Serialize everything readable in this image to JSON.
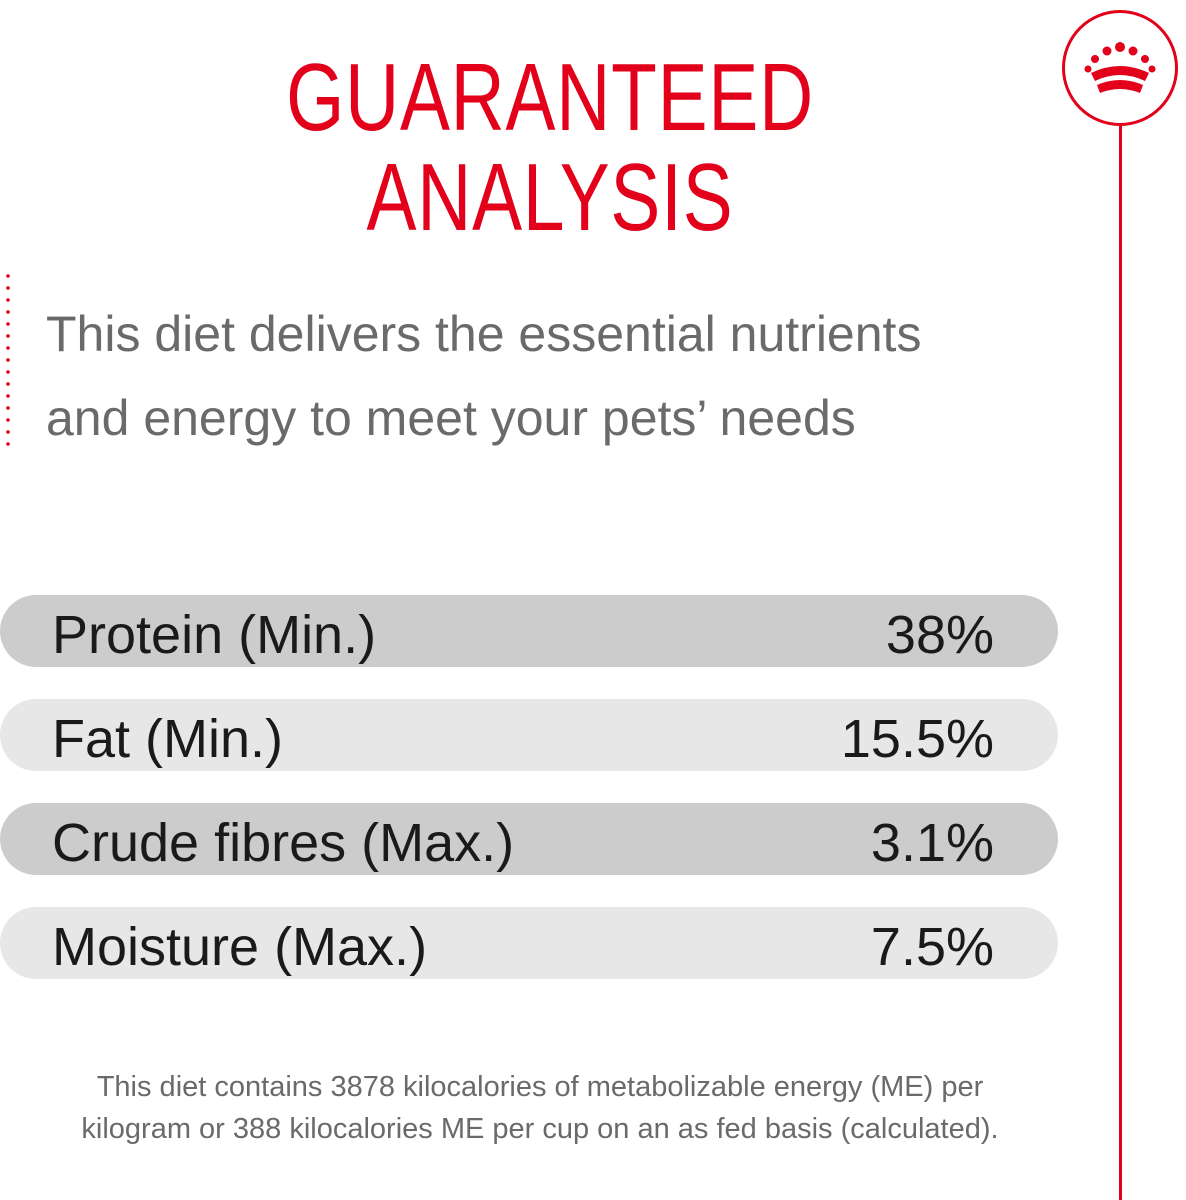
{
  "title": "GUARANTEED ANALYSIS",
  "brand_logo": {
    "icon": "royal-crown-icon",
    "color": "#e2001a"
  },
  "intro": {
    "line1": "This diet delivers the essential nutrients",
    "line2": "and energy to meet your pets’ needs"
  },
  "analysis": [
    {
      "label": "Protein (Min.)",
      "value": "38%"
    },
    {
      "label": "Fat (Min.)",
      "value": "15.5%"
    },
    {
      "label": "Crude fibres (Max.)",
      "value": "3.1%"
    },
    {
      "label": "Moisture (Max.)",
      "value": "7.5%"
    }
  ],
  "footnote": {
    "line1": "This diet contains 3878 kilocalories of metabolizable energy (ME) per",
    "line2": "kilogram or 388 kilocalories ME per cup on an as fed basis (calculated)."
  },
  "colors": {
    "accent": "#e2001a",
    "row_dark": "#cccccc",
    "row_light": "#e7e7e7",
    "text_gray": "#6a6a6a"
  }
}
